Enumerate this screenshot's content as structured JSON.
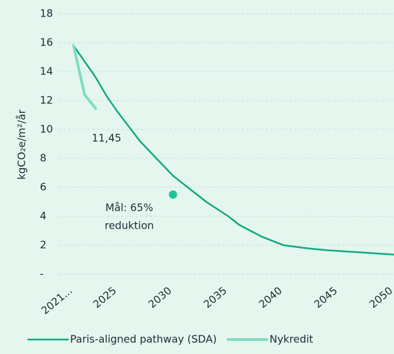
{
  "chart_data": {
    "type": "line",
    "y_label": "kgCO₂e/m²/år",
    "x": [
      2021,
      2022,
      2023,
      2024,
      2025,
      2026,
      2027,
      2028,
      2029,
      2030,
      2031,
      2032,
      2033,
      2034,
      2035,
      2036,
      2037,
      2038,
      2039,
      2040,
      2041,
      2042,
      2043,
      2044,
      2045,
      2046,
      2047,
      2048,
      2049,
      2050
    ],
    "series": [
      {
        "name": "Paris-aligned pathway (SDA)",
        "color": "#13a983",
        "values": [
          15.8,
          14.7,
          13.6,
          12.3,
          11.2,
          10.2,
          9.2,
          8.4,
          7.6,
          6.8,
          6.2,
          5.6,
          5.0,
          4.5,
          4.0,
          3.4,
          3.0,
          2.6,
          2.3,
          2.0,
          1.9,
          1.8,
          1.72,
          1.65,
          1.6,
          1.55,
          1.5,
          1.45,
          1.4,
          1.35
        ]
      },
      {
        "name": "Nykredit",
        "color": "#7fdcc2",
        "values": [
          15.8,
          12.4,
          11.45,
          null,
          null,
          null,
          null,
          null,
          null,
          null,
          null,
          null,
          null,
          null,
          null,
          null,
          null,
          null,
          null,
          null,
          null,
          null,
          null,
          null,
          null,
          null,
          null,
          null,
          null,
          null
        ]
      }
    ],
    "target": {
      "x": 2030,
      "value": 5.5,
      "color": "#1dc29b"
    },
    "annotations": [
      "11,45",
      "Mål: 65%",
      "reduktion"
    ],
    "xlim": [
      2021,
      2050
    ],
    "xticks": [
      {
        "value": 2021,
        "label": "2021..."
      },
      2025,
      2030,
      2035,
      2040,
      2045,
      2050
    ],
    "ylim": [
      0,
      18
    ],
    "yticks": [
      {
        "value": 0,
        "label": "-"
      },
      2,
      4,
      6,
      8,
      10,
      12,
      14,
      16,
      18
    ],
    "grid": true,
    "legend": "bottom"
  }
}
